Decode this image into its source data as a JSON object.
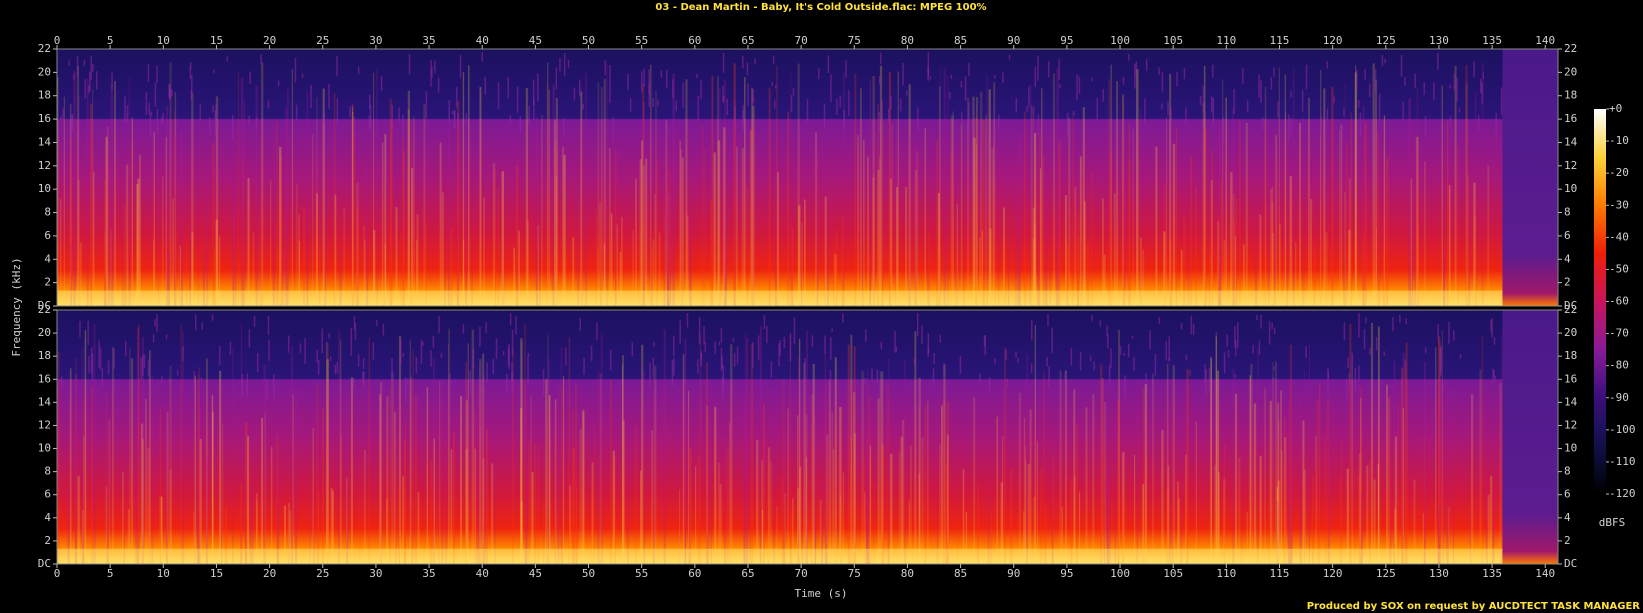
{
  "chart_data": {
    "type": "spectrogram",
    "title": "03 - Dean Martin - Baby, It's Cold Outside.flac: MPEG 100%",
    "x_label": "Time (s)",
    "y_label": "Frequency (kHz)",
    "xlim": [
      0,
      141.2
    ],
    "xticks": [
      0,
      5,
      10,
      15,
      20,
      25,
      30,
      35,
      40,
      45,
      50,
      55,
      60,
      65,
      70,
      75,
      80,
      85,
      90,
      95,
      100,
      105,
      110,
      115,
      120,
      125,
      130,
      135,
      140
    ],
    "ylim": [
      0,
      22
    ],
    "yticks": [
      {
        "value": 0,
        "label": "DC"
      },
      2,
      4,
      6,
      8,
      10,
      12,
      14,
      16,
      18,
      20,
      22
    ],
    "colorbar": {
      "label": "dBFS",
      "lim": [
        -120,
        0
      ],
      "ticks": [
        {
          "value": 0,
          "label": "+0"
        },
        -10,
        -20,
        -30,
        -40,
        -50,
        -60,
        -70,
        -80,
        -90,
        -100,
        -110,
        -120
      ],
      "colors": [
        "#000000",
        "#10104a",
        "#3a0f7a",
        "#8a1a9a",
        "#c8145a",
        "#f01e0a",
        "#ff7a00",
        "#ffd23a",
        "#ffffff"
      ]
    },
    "footer": "Produced by SOX on request by AUCDTECT TASK MANAGER"
  }
}
